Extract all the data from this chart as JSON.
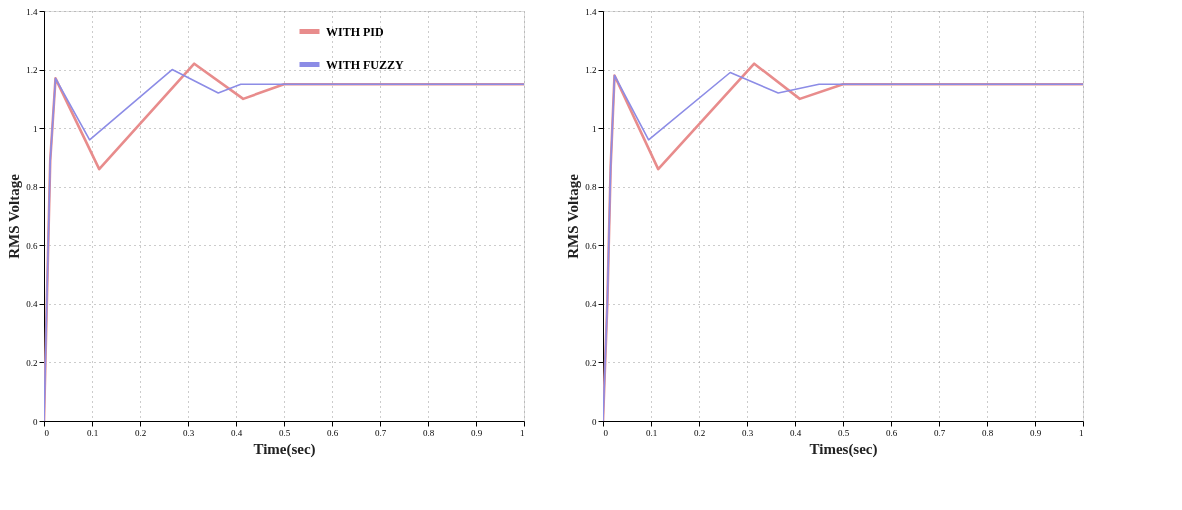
{
  "chart_data": [
    {
      "type": "line",
      "xlabel": "Time(sec)",
      "ylabel": "RMS Voltage",
      "xlim": [
        0,
        1
      ],
      "ylim": [
        0,
        1.4
      ],
      "xticks": [
        0,
        0.1,
        0.2,
        0.3,
        0.4,
        0.5,
        0.6,
        0.7,
        0.8,
        0.9,
        1
      ],
      "yticks": [
        0,
        0.2,
        0.4,
        0.6,
        0.8,
        1,
        1.2,
        1.4
      ],
      "grid": true,
      "legend": "top right",
      "line_style": "solid",
      "series": [
        {
          "name": "WITH PID",
          "color": "#e88c8c",
          "x": [
            0,
            0.013,
            0.024,
            0.115,
            0.313,
            0.415,
            0.5,
            1
          ],
          "values": [
            0,
            0.89,
            1.17,
            0.86,
            1.22,
            1.1,
            1.15,
            1.15
          ]
        },
        {
          "name": "WITH FUZZY",
          "color": "#8c8ce6",
          "x": [
            0,
            0.013,
            0.024,
            0.095,
            0.267,
            0.363,
            0.41,
            1
          ],
          "values": [
            0,
            0.89,
            1.17,
            0.96,
            1.2,
            1.12,
            1.15,
            1.15
          ]
        }
      ]
    },
    {
      "type": "line",
      "xlabel": "Times(sec)",
      "ylabel": "RMS Voltage",
      "xlim": [
        0,
        1
      ],
      "ylim": [
        0,
        1.4
      ],
      "xticks": [
        0,
        0.1,
        0.2,
        0.3,
        0.4,
        0.5,
        0.6,
        0.7,
        0.8,
        0.9,
        1
      ],
      "yticks": [
        0,
        0.2,
        0.4,
        0.6,
        0.8,
        1,
        1.2,
        1.4
      ],
      "grid": true,
      "legend": "top right",
      "line_style": "solid",
      "series": [
        {
          "name": "WITH PID",
          "color": "#e88c8c",
          "x": [
            0,
            0.009,
            0.016,
            0.024,
            0.115,
            0.315,
            0.41,
            0.5,
            1
          ],
          "values": [
            0,
            0.4,
            0.87,
            1.18,
            0.86,
            1.22,
            1.1,
            1.15,
            1.15
          ]
        },
        {
          "name": "WITH FUZZY",
          "color": "#8c8ce6",
          "x": [
            0,
            0.009,
            0.016,
            0.024,
            0.095,
            0.265,
            0.365,
            0.45,
            1
          ],
          "values": [
            0,
            0.4,
            0.87,
            1.18,
            0.96,
            1.19,
            1.12,
            1.15,
            1.15
          ]
        }
      ]
    }
  ]
}
